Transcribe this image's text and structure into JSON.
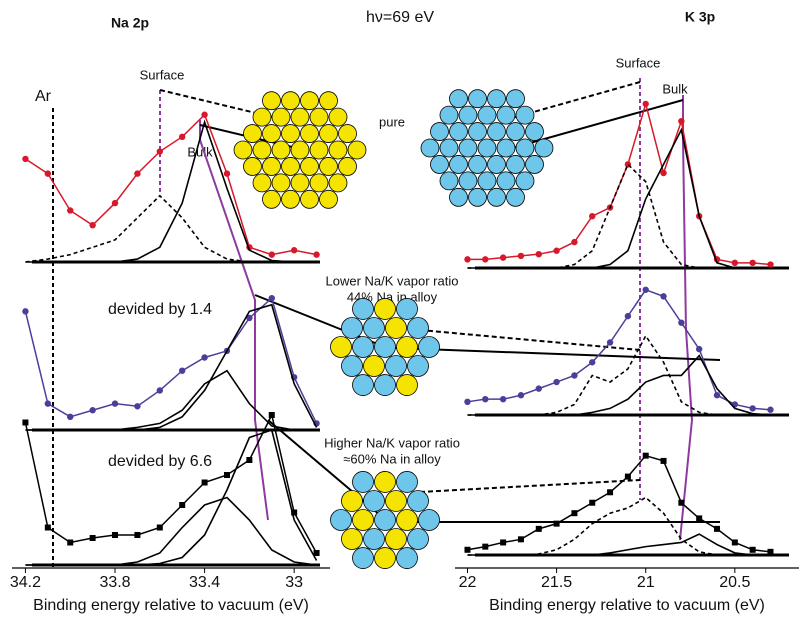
{
  "figure": {
    "photon_energy": "hν=69 eV",
    "pure": "pure",
    "lower": [
      "Lower Na/K vapor ratio",
      "44% Na in alloy"
    ],
    "higher": [
      "Higher Na/K vapor ratio",
      "≈60% Na in alloy"
    ],
    "na_surface": "Surface",
    "na_bulk": "Bulk",
    "k_surface": "Surface",
    "k_bulk": "Bulk",
    "ar": "Ar"
  },
  "chart_data": [
    {
      "type": "line",
      "title": "Na 2p",
      "x": [
        34.2,
        34.1,
        34.0,
        33.9,
        33.8,
        33.7,
        33.6,
        33.5,
        33.4,
        33.3,
        33.2,
        33.1,
        33.0,
        32.9
      ],
      "xlim": [
        34.26,
        32.84
      ],
      "ylim": [
        0,
        1.1
      ],
      "series": [
        {
          "color": "#d7192b",
          "style": "dots",
          "values": [
            0.7,
            0.6,
            0.35,
            0.25,
            0.4,
            0.6,
            0.75,
            0.85,
            1.0,
            0.6,
            0.1,
            0.05,
            0.08,
            0.05
          ]
        },
        {
          "color": "#000000",
          "style": "dashed",
          "values": [
            0,
            0.02,
            0.05,
            0.1,
            0.15,
            0.3,
            0.45,
            0.3,
            0.1,
            0.02,
            0,
            0,
            0,
            0
          ]
        },
        {
          "color": "#000000",
          "style": "solid",
          "values": [
            0,
            0,
            0,
            0,
            0,
            0.02,
            0.1,
            0.4,
            0.95,
            0.5,
            0.08,
            0.01,
            0,
            0
          ]
        }
      ]
    },
    {
      "type": "line",
      "annotation": "devided by 1.4",
      "x": [
        34.2,
        34.1,
        34.0,
        33.9,
        33.8,
        33.7,
        33.6,
        33.5,
        33.4,
        33.3,
        33.2,
        33.1,
        33.0,
        32.9
      ],
      "xlim": [
        34.26,
        32.84
      ],
      "ylim": [
        0,
        1.1
      ],
      "series": [
        {
          "color": "#4b3f9a",
          "style": "dots",
          "values": [
            0.9,
            0.2,
            0.1,
            0.15,
            0.2,
            0.18,
            0.3,
            0.45,
            0.55,
            0.6,
            0.85,
            1.0,
            0.4,
            0.05
          ]
        },
        {
          "color": "#000000",
          "style": "solid",
          "values": [
            0,
            0,
            0,
            0,
            0,
            0.02,
            0.05,
            0.15,
            0.35,
            0.45,
            0.2,
            0.03,
            0,
            0
          ]
        },
        {
          "color": "#000000",
          "style": "solid",
          "values": [
            0,
            0,
            0,
            0,
            0,
            0,
            0.02,
            0.1,
            0.3,
            0.6,
            0.9,
            0.95,
            0.35,
            0.02
          ]
        }
      ]
    },
    {
      "type": "line",
      "annotation": "devided by 6.6",
      "xlabel": "Binding energy relative to vacuum (eV)",
      "x": [
        34.2,
        34.1,
        34.0,
        33.9,
        33.8,
        33.7,
        33.6,
        33.5,
        33.4,
        33.3,
        33.2,
        33.1,
        33.0,
        32.9
      ],
      "xlim": [
        34.26,
        32.84
      ],
      "xticks": [
        34.2,
        33.8,
        33.4,
        33.0
      ],
      "ylim": [
        0,
        1.1
      ],
      "series": [
        {
          "color": "#000000",
          "style": "squares",
          "values": [
            0.95,
            0.25,
            0.15,
            0.18,
            0.2,
            0.2,
            0.25,
            0.4,
            0.55,
            0.6,
            0.7,
            1.0,
            0.35,
            0.08
          ]
        },
        {
          "color": "#000000",
          "style": "solid",
          "values": [
            0,
            0,
            0,
            0,
            0,
            0.02,
            0.08,
            0.25,
            0.4,
            0.45,
            0.3,
            0.1,
            0.02,
            0
          ]
        },
        {
          "color": "#000000",
          "style": "solid",
          "values": [
            0,
            0,
            0,
            0,
            0,
            0,
            0.01,
            0.05,
            0.2,
            0.5,
            0.85,
            0.9,
            0.3,
            0.03
          ]
        }
      ]
    },
    {
      "type": "line",
      "title": "K 3p",
      "x": [
        22.0,
        21.9,
        21.8,
        21.7,
        21.6,
        21.5,
        21.4,
        21.3,
        21.2,
        21.1,
        21.0,
        20.9,
        20.8,
        20.7,
        20.6,
        20.5,
        20.4,
        20.3
      ],
      "xlim": [
        22.07,
        20.14
      ],
      "ylim": [
        0,
        1.1
      ],
      "series": [
        {
          "color": "#d7192b",
          "style": "dots",
          "values": [
            0.05,
            0.05,
            0.06,
            0.07,
            0.08,
            0.1,
            0.15,
            0.3,
            0.35,
            0.6,
            0.95,
            0.55,
            0.85,
            0.3,
            0.05,
            0.03,
            0.03,
            0.02
          ]
        },
        {
          "color": "#000000",
          "style": "dashed",
          "values": [
            0,
            0,
            0,
            0,
            0,
            0,
            0.02,
            0.1,
            0.35,
            0.6,
            0.5,
            0.15,
            0.02,
            0,
            0,
            0,
            0,
            0
          ]
        },
        {
          "color": "#000000",
          "style": "solid",
          "values": [
            0,
            0,
            0,
            0,
            0,
            0,
            0,
            0,
            0.02,
            0.1,
            0.4,
            0.6,
            0.8,
            0.3,
            0.03,
            0,
            0,
            0
          ]
        }
      ]
    },
    {
      "type": "line",
      "x": [
        22.0,
        21.9,
        21.8,
        21.7,
        21.6,
        21.5,
        21.4,
        21.3,
        21.2,
        21.1,
        21.0,
        20.9,
        20.8,
        20.7,
        20.6,
        20.5,
        20.4,
        20.3
      ],
      "xlim": [
        22.07,
        20.14
      ],
      "ylim": [
        0,
        1.1
      ],
      "series": [
        {
          "color": "#4b3f9a",
          "style": "dots",
          "values": [
            0.1,
            0.12,
            0.12,
            0.15,
            0.2,
            0.25,
            0.3,
            0.4,
            0.55,
            0.75,
            0.95,
            0.9,
            0.7,
            0.5,
            0.15,
            0.08,
            0.05,
            0.04
          ]
        },
        {
          "color": "#000000",
          "style": "dashed",
          "values": [
            0,
            0,
            0,
            0,
            0,
            0.02,
            0.08,
            0.3,
            0.25,
            0.35,
            0.6,
            0.4,
            0.1,
            0.02,
            0,
            0,
            0,
            0
          ]
        },
        {
          "color": "#000000",
          "style": "solid",
          "values": [
            0,
            0,
            0,
            0,
            0,
            0,
            0,
            0.02,
            0.05,
            0.12,
            0.25,
            0.3,
            0.3,
            0.45,
            0.2,
            0.05,
            0.01,
            0
          ]
        }
      ]
    },
    {
      "type": "line",
      "xlabel": "Binding energy relative to vacuum (eV)",
      "x": [
        22.0,
        21.9,
        21.8,
        21.7,
        21.6,
        21.5,
        21.4,
        21.3,
        21.2,
        21.1,
        21.0,
        20.9,
        20.8,
        20.7,
        20.6,
        20.5,
        20.4,
        20.3
      ],
      "xlim": [
        22.07,
        20.14
      ],
      "xticks": [
        22.0,
        21.5,
        21.0,
        20.5
      ],
      "ylim": [
        0,
        1.1
      ],
      "series": [
        {
          "color": "#000000",
          "style": "squares",
          "values": [
            0.05,
            0.08,
            0.12,
            0.15,
            0.25,
            0.3,
            0.4,
            0.5,
            0.6,
            0.75,
            0.95,
            0.9,
            0.5,
            0.35,
            0.25,
            0.12,
            0.05,
            0.03
          ]
        },
        {
          "color": "#000000",
          "style": "dashed",
          "values": [
            0,
            0,
            0,
            0,
            0.01,
            0.05,
            0.15,
            0.3,
            0.4,
            0.45,
            0.55,
            0.4,
            0.15,
            0.03,
            0,
            0,
            0,
            0
          ]
        },
        {
          "color": "#000000",
          "style": "solid",
          "values": [
            0,
            0,
            0,
            0,
            0,
            0,
            0,
            0,
            0.02,
            0.05,
            0.08,
            0.1,
            0.12,
            0.2,
            0.1,
            0.02,
            0,
            0
          ]
        }
      ]
    }
  ]
}
